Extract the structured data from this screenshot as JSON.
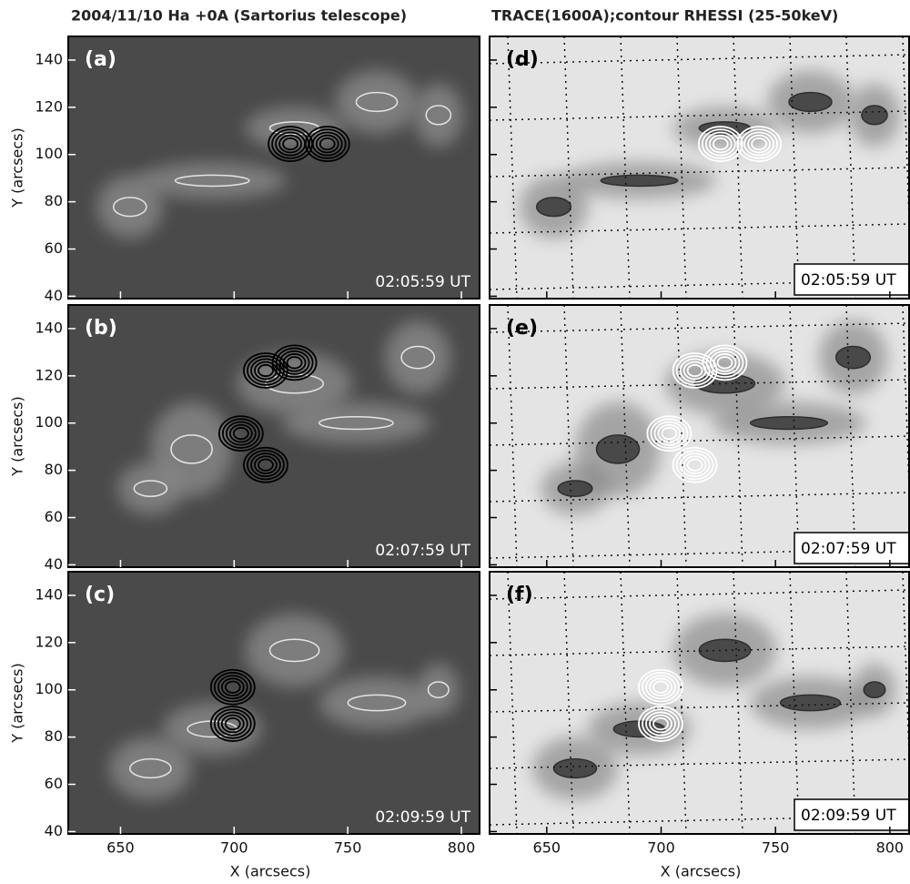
{
  "columns": [
    {
      "title": "2004/11/10 Ha +0A (Sartorius telescope)",
      "xlim": [
        627,
        808
      ],
      "panels": [
        {
          "label": "(a)",
          "time": "02:05:59 UT"
        },
        {
          "label": "(b)",
          "time": "02:07:59 UT"
        },
        {
          "label": "(c)",
          "time": "02:09:59 UT"
        }
      ]
    },
    {
      "title": "TRACE(1600A);contour RHESSI (25-50keV)",
      "xlim": [
        625,
        812
      ],
      "panels": [
        {
          "label": "(d)",
          "time": "02:05:59 UT"
        },
        {
          "label": "(e)",
          "time": "02:07:59 UT"
        },
        {
          "label": "(f)",
          "time": "02:09:59 UT"
        }
      ]
    }
  ],
  "y_axis_label": "Y (arcsecs)",
  "x_axis_label": "X (arcsecs)",
  "ylim": [
    39,
    150
  ],
  "yticks": [
    40,
    60,
    80,
    100,
    120,
    140
  ],
  "xticks": [
    650,
    700,
    750,
    800
  ]
}
